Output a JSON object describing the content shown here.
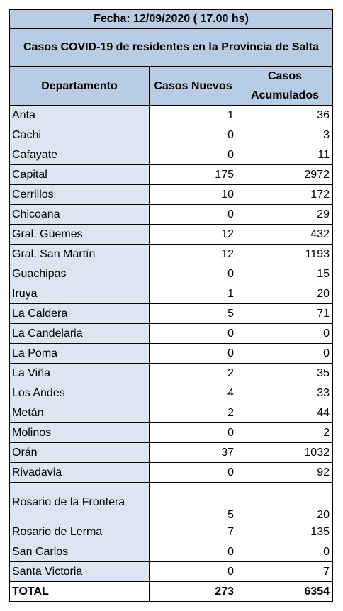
{
  "title": "Fecha: 12/09/2020 ( 17.00 hs)",
  "subtitle": "Casos COVID-19 de residentes en la Provincia de Salta",
  "headers": {
    "departamento": "Departamento",
    "nuevos": "Casos Nuevos",
    "acumulados": "Casos Acumulados"
  },
  "rows": [
    {
      "dep": "Anta",
      "nuevos": "1",
      "acum": "36"
    },
    {
      "dep": "Cachi",
      "nuevos": "0",
      "acum": "3"
    },
    {
      "dep": "Cafayate",
      "nuevos": "0",
      "acum": "11"
    },
    {
      "dep": "Capital",
      "nuevos": "175",
      "acum": "2972"
    },
    {
      "dep": "Cerrillos",
      "nuevos": "10",
      "acum": "172"
    },
    {
      "dep": "Chicoana",
      "nuevos": "0",
      "acum": "29"
    },
    {
      "dep": "Gral. Güemes",
      "nuevos": "12",
      "acum": "432"
    },
    {
      "dep": "Gral. San Martín",
      "nuevos": "12",
      "acum": "1193"
    },
    {
      "dep": "Guachipas",
      "nuevos": "0",
      "acum": "15"
    },
    {
      "dep": "Iruya",
      "nuevos": "1",
      "acum": "20"
    },
    {
      "dep": "La Caldera",
      "nuevos": "5",
      "acum": "71"
    },
    {
      "dep": "La Candelaria",
      "nuevos": "0",
      "acum": "0"
    },
    {
      "dep": "La Poma",
      "nuevos": "0",
      "acum": "0"
    },
    {
      "dep": "La Viña",
      "nuevos": "2",
      "acum": "35"
    },
    {
      "dep": "Los Andes",
      "nuevos": "4",
      "acum": "33"
    },
    {
      "dep": "Metán",
      "nuevos": "2",
      "acum": "44"
    },
    {
      "dep": "Molinos",
      "nuevos": "0",
      "acum": "2"
    },
    {
      "dep": "Orán",
      "nuevos": "37",
      "acum": "1032"
    },
    {
      "dep": "Rivadavia",
      "nuevos": "0",
      "acum": "92"
    },
    {
      "dep": "Rosario de la Frontera",
      "nuevos": "5",
      "acum": "20"
    },
    {
      "dep": "Rosario de Lerma",
      "nuevos": "7",
      "acum": "135"
    },
    {
      "dep": "San Carlos",
      "nuevos": "0",
      "acum": "0"
    },
    {
      "dep": "Santa Victoria",
      "nuevos": "0",
      "acum": "7"
    }
  ],
  "total": {
    "label": "TOTAL",
    "nuevos": "273",
    "acum": "6354"
  }
}
